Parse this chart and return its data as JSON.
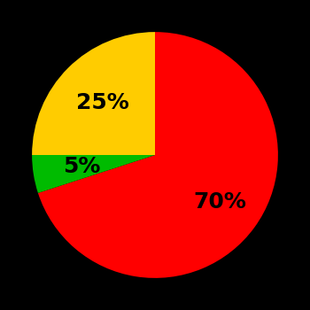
{
  "slices": [
    {
      "label": "70%",
      "value": 70,
      "color": "#ff0000"
    },
    {
      "label": "5%",
      "value": 5,
      "color": "#00bb00"
    },
    {
      "label": "25%",
      "value": 25,
      "color": "#ffcc00"
    }
  ],
  "background_color": "#000000",
  "text_color": "#000000",
  "font_size": 18,
  "font_weight": "bold",
  "startangle": 90,
  "pctdistance_red": 0.65,
  "pctdistance_green": 0.6,
  "pctdistance_yellow": 0.6
}
